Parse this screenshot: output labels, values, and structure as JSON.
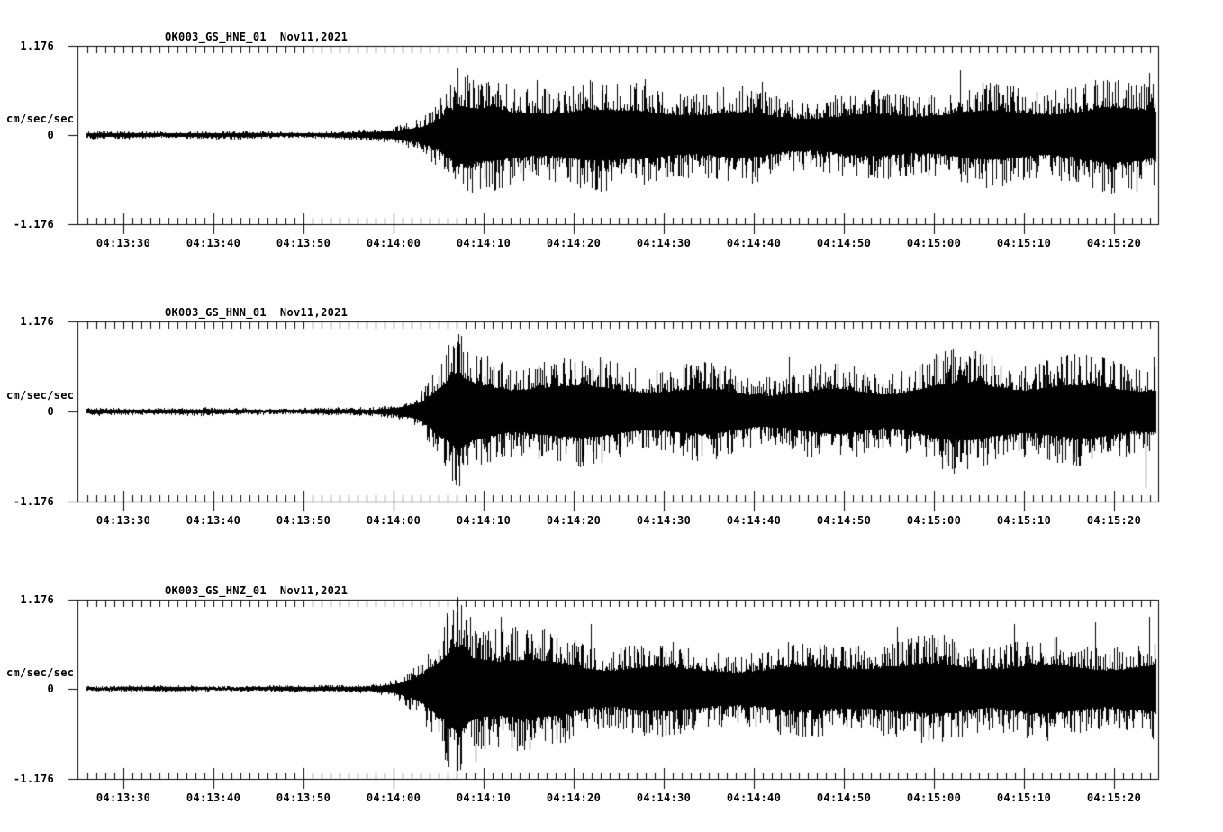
{
  "figure": {
    "background_color": "#ffffff",
    "trace_color": "#000000",
    "axis_color": "#000000"
  },
  "y_axis": {
    "max_label": "1.176",
    "zero_label": "0",
    "min_label": "-1.176",
    "unit_label": "cm/sec/sec",
    "ylim": [
      -1.176,
      1.176
    ]
  },
  "time_axis": {
    "start": "04:13:24.9",
    "end": "04:15:24.9",
    "major_tick_seconds": 10,
    "minor_tick_seconds": 1,
    "labels": [
      "04:13:30",
      "04:13:40",
      "04:13:50",
      "04:14:00",
      "04:14:10",
      "04:14:20",
      "04:14:30",
      "04:14:40",
      "04:14:50",
      "04:15:00",
      "04:15:10",
      "04:15:20"
    ]
  },
  "panels": [
    {
      "title": "OK003_GS_HNE_01  Nov11,2021",
      "channel": "OK003_GS_HNE_01",
      "date": "Nov11,2021"
    },
    {
      "title": "OK003_GS_HNN_01  Nov11,2021",
      "channel": "OK003_GS_HNN_01",
      "date": "Nov11,2021"
    },
    {
      "title": "OK003_GS_HNZ_01  Nov11,2021",
      "channel": "OK003_GS_HNZ_01",
      "date": "Nov11,2021"
    }
  ],
  "chart_data": [
    {
      "type": "line",
      "kind": "seismogram",
      "name": "OK003_GS_HNE_01",
      "title": "OK003_GS_HNE_01  Nov11,2021",
      "xlabel": "",
      "ylabel": "cm/sec/sec",
      "ylim": [
        -1.176,
        1.176
      ],
      "x_start": "04:13:24.9",
      "x_end": "04:15:24.9",
      "x_tick_labels": [
        "04:13:30",
        "04:13:40",
        "04:13:50",
        "04:14:00",
        "04:14:10",
        "04:14:20",
        "04:14:30",
        "04:14:40",
        "04:14:50",
        "04:15:00",
        "04:15:10",
        "04:15:20"
      ],
      "grid": false,
      "legend": false,
      "envelope_t_sec": [
        1,
        25,
        30,
        33,
        35,
        38,
        40,
        42,
        44,
        48,
        55,
        60,
        65,
        70,
        75,
        80,
        85,
        90,
        95,
        100,
        105,
        110,
        115,
        120
      ],
      "envelope_amp": [
        0.047,
        0.047,
        0.059,
        0.082,
        0.118,
        0.282,
        0.529,
        0.894,
        0.729,
        0.647,
        0.682,
        0.588,
        0.647,
        0.565,
        0.612,
        0.588,
        0.565,
        0.612,
        0.647,
        0.612,
        0.588,
        0.635,
        0.67,
        0.706
      ],
      "notable_peaks": [
        {
          "t": 42.2,
          "a": 0.89
        },
        {
          "t": 43.8,
          "a": -0.76
        },
        {
          "t": 51.0,
          "a": 0.72
        },
        {
          "t": 63.0,
          "a": 0.74
        },
        {
          "t": 76.0,
          "a": 0.7
        },
        {
          "t": 98.0,
          "a": 0.85
        },
        {
          "t": 113.0,
          "a": 0.72
        },
        {
          "t": 119.0,
          "a": 0.82
        }
      ]
    },
    {
      "type": "line",
      "kind": "seismogram",
      "name": "OK003_GS_HNN_01",
      "title": "OK003_GS_HNN_01  Nov11,2021",
      "xlabel": "",
      "ylabel": "cm/sec/sec",
      "ylim": [
        -1.176,
        1.176
      ],
      "x_start": "04:13:24.9",
      "x_end": "04:15:24.9",
      "x_tick_labels": [
        "04:13:30",
        "04:13:40",
        "04:13:50",
        "04:14:00",
        "04:14:10",
        "04:14:20",
        "04:14:30",
        "04:14:40",
        "04:14:50",
        "04:15:00",
        "04:15:10",
        "04:15:20"
      ],
      "grid": false,
      "legend": false,
      "envelope_t_sec": [
        1,
        25,
        30,
        33,
        35,
        38,
        40,
        42,
        44,
        48,
        55,
        60,
        65,
        70,
        75,
        80,
        85,
        90,
        95,
        100,
        105,
        110,
        115,
        120
      ],
      "envelope_amp": [
        0.047,
        0.047,
        0.059,
        0.071,
        0.106,
        0.259,
        0.588,
        0.917,
        0.753,
        0.647,
        0.612,
        0.635,
        0.588,
        0.612,
        0.565,
        0.588,
        0.612,
        0.541,
        0.659,
        0.706,
        0.635,
        0.659,
        0.682,
        0.729
      ],
      "notable_peaks": [
        {
          "t": 41.8,
          "a": 0.82
        },
        {
          "t": 42.4,
          "a": -0.98
        },
        {
          "t": 58.0,
          "a": 0.7
        },
        {
          "t": 79.0,
          "a": 0.72
        },
        {
          "t": 97.0,
          "a": 0.8
        },
        {
          "t": 112.0,
          "a": 0.74
        },
        {
          "t": 118.6,
          "a": -1.0
        },
        {
          "t": 119.5,
          "a": 0.72
        }
      ]
    },
    {
      "type": "line",
      "kind": "seismogram",
      "name": "OK003_GS_HNZ_01",
      "title": "OK003_GS_HNZ_01  Nov11,2021",
      "xlabel": "",
      "ylabel": "cm/sec/sec",
      "ylim": [
        -1.176,
        1.176
      ],
      "x_start": "04:13:24.9",
      "x_end": "04:15:24.9",
      "x_tick_labels": [
        "04:13:30",
        "04:13:40",
        "04:13:50",
        "04:14:00",
        "04:14:10",
        "04:14:20",
        "04:14:30",
        "04:14:40",
        "04:14:50",
        "04:15:00",
        "04:15:10",
        "04:15:20"
      ],
      "grid": false,
      "legend": false,
      "envelope_t_sec": [
        1,
        25,
        30,
        33,
        35,
        38,
        40,
        42,
        44,
        47,
        52,
        57,
        62,
        67,
        72,
        77,
        82,
        87,
        92,
        97,
        102,
        107,
        112,
        117,
        120
      ],
      "envelope_amp": [
        0.041,
        0.047,
        0.059,
        0.071,
        0.106,
        0.306,
        0.647,
        1.176,
        0.917,
        0.776,
        0.682,
        0.612,
        0.647,
        0.588,
        0.612,
        0.565,
        0.588,
        0.612,
        0.565,
        0.635,
        0.612,
        0.635,
        0.659,
        0.706,
        0.682
      ],
      "notable_peaks": [
        {
          "t": 42.2,
          "a": 1.21
        },
        {
          "t": 42.5,
          "a": -1.06
        },
        {
          "t": 44.2,
          "a": -0.96
        },
        {
          "t": 47.0,
          "a": 0.94
        },
        {
          "t": 57.0,
          "a": 0.85
        },
        {
          "t": 91.0,
          "a": 0.82
        },
        {
          "t": 104.0,
          "a": 0.85
        },
        {
          "t": 113.0,
          "a": 0.87
        },
        {
          "t": 119.0,
          "a": 0.94
        }
      ]
    }
  ]
}
